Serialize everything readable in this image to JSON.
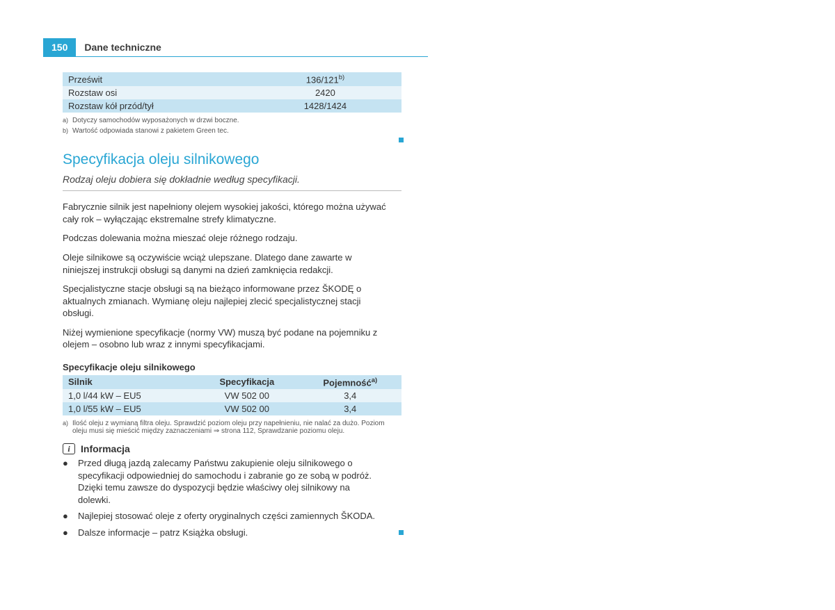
{
  "header": {
    "page_number": "150",
    "title": "Dane techniczne"
  },
  "colors": {
    "accent": "#29a6d4",
    "table_row_dark": "#c5e3f2",
    "table_row_light": "#e8f3f9",
    "text": "#333333",
    "footnote_text": "#555555"
  },
  "dim_table": {
    "rows": [
      {
        "label": "Prześwit",
        "value": "136/121",
        "sup": "b)"
      },
      {
        "label": "Rozstaw osi",
        "value": "2420",
        "sup": ""
      },
      {
        "label": "Rozstaw kół przód/tył",
        "value": "1428/1424",
        "sup": ""
      }
    ]
  },
  "dim_footnotes": [
    {
      "marker": "a)",
      "text": "Dotyczy samochodów wyposażonych w drzwi boczne."
    },
    {
      "marker": "b)",
      "text": "Wartość odpowiada stanowi z pakietem Green tec."
    }
  ],
  "section": {
    "title": "Specyfikacja oleju silnikowego",
    "subtitle": "Rodzaj oleju dobiera się dokładnie według specyfikacji.",
    "paragraphs": [
      "Fabrycznie silnik jest napełniony olejem wysokiej jakości, którego można używać cały rok – wyłączając ekstremalne strefy klimatyczne.",
      "Podczas dolewania można mieszać oleje różnego rodzaju.",
      "Oleje silnikowe są oczywiście wciąż ulepszane. Dlatego dane zawarte w niniejszej instrukcji obsługi są danymi na dzień zamknięcia redakcji.",
      "Specjalistyczne stacje obsługi są na bieżąco informowane przez ŠKODĘ o aktualnych zmianach. Wymianę oleju najlepiej zlecić specjalistycznej stacji obsługi.",
      "Niżej wymienione specyfikacje (normy VW) muszą być podane na pojemniku z olejem – osobno lub wraz z innymi specyfikacjami."
    ]
  },
  "spec_table": {
    "title": "Specyfikacje oleju silnikowego",
    "headers": {
      "c1": "Silnik",
      "c2": "Specyfikacja",
      "c3": "Pojemność",
      "c3_sup": "a)"
    },
    "rows": [
      {
        "engine": "1,0 l/44 kW – EU5",
        "spec": "VW 502 00",
        "capacity": "3,4"
      },
      {
        "engine": "1,0 l/55 kW – EU5",
        "spec": "VW 502 00",
        "capacity": "3,4"
      }
    ]
  },
  "spec_footnotes": [
    {
      "marker": "a)",
      "text": "Ilość oleju z wymianą filtra oleju. Sprawdzić poziom oleju przy napełnieniu, nie nalać za dużo. Poziom oleju musi się mieścić między zaznaczeniami ⇒ strona 112, Sprawdzanie poziomu oleju."
    }
  ],
  "info": {
    "label": "Informacja",
    "bullets": [
      "Przed długą jazdą zalecamy Państwu zakupienie oleju silnikowego o specyfikacji odpowiedniej do samochodu i zabranie go ze sobą w podróż. Dzięki temu zawsze do dyspozycji będzie właściwy olej silnikowy na dolewki.",
      "Najlepiej stosować oleje z oferty oryginalnych części zamiennych ŠKODA.",
      "Dalsze informacje – patrz Książka obsługi."
    ]
  }
}
